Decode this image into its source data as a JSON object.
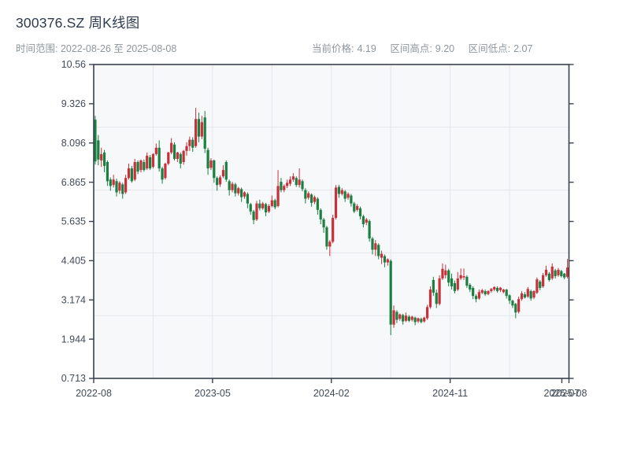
{
  "header": {
    "title": "300376.SZ 周K线图",
    "subtitle": "时间范围: 2022-08-26 至 2025-08-08",
    "stats": [
      {
        "label": "当前价格:",
        "value": "4.19"
      },
      {
        "label": "区间高点:",
        "value": "9.20"
      },
      {
        "label": "区间低点:",
        "value": "2.07"
      }
    ]
  },
  "chart_data": {
    "type": "candlestick",
    "title": "300376.SZ 周K线图",
    "period": "weekly",
    "date_start": "2022-08-26",
    "date_end": "2025-08-08",
    "current_price": 4.19,
    "range_high": 9.2,
    "range_low": 2.07,
    "y_axis": {
      "min": 0.713,
      "max": 10.56,
      "labels": [
        "10.56",
        "9.326",
        "8.096",
        "6.865",
        "5.635",
        "4.405",
        "3.174",
        "1.944",
        "0.713"
      ]
    },
    "x_axis": {
      "ticks": [
        {
          "label": "2022-08",
          "pos": 0
        },
        {
          "label": "2023-05",
          "pos": 0.25
        },
        {
          "label": "2024-02",
          "pos": 0.5
        },
        {
          "label": "2024-11",
          "pos": 0.75
        },
        {
          "label": "2025-07",
          "pos": 0.985
        },
        {
          "label": "2025-08",
          "pos": 1.0
        }
      ]
    },
    "grid": {
      "h_divisions": 5,
      "v_divisions": 8
    },
    "colors": {
      "up": "#c8313a",
      "down": "#1a7f41",
      "plot_bg": "#f7f8fa",
      "grid": "#e2e6eb",
      "axis": "#39424e",
      "label": "#414c59",
      "title": "#2e3b4e",
      "meta": "#8e979f"
    },
    "ohlc": [
      [
        8.83,
        8.95,
        7.42,
        7.52
      ],
      [
        8.18,
        8.35,
        7.4,
        7.58
      ],
      [
        7.55,
        7.95,
        7.35,
        7.75
      ],
      [
        7.8,
        7.88,
        7.18,
        7.38
      ],
      [
        7.5,
        7.55,
        6.75,
        6.9
      ],
      [
        6.95,
        7.02,
        6.6,
        6.75
      ],
      [
        6.78,
        7.1,
        6.7,
        6.95
      ],
      [
        6.9,
        6.98,
        6.42,
        6.55
      ],
      [
        6.6,
        6.9,
        6.5,
        6.85
      ],
      [
        6.8,
        6.85,
        6.35,
        6.5
      ],
      [
        6.55,
        7.1,
        6.5,
        7.0
      ],
      [
        7.0,
        7.45,
        6.95,
        7.3
      ],
      [
        7.3,
        7.38,
        6.85,
        6.9
      ],
      [
        6.95,
        7.6,
        6.9,
        7.5
      ],
      [
        7.5,
        7.55,
        7.12,
        7.2
      ],
      [
        7.25,
        7.58,
        7.18,
        7.55
      ],
      [
        7.5,
        7.58,
        7.2,
        7.25
      ],
      [
        7.3,
        7.8,
        7.25,
        7.7
      ],
      [
        7.65,
        7.72,
        7.25,
        7.3
      ],
      [
        7.35,
        7.78,
        7.3,
        7.75
      ],
      [
        7.75,
        8.08,
        7.7,
        7.95
      ],
      [
        7.95,
        8.18,
        7.2,
        7.3
      ],
      [
        7.3,
        7.35,
        6.82,
        6.95
      ],
      [
        7.0,
        7.48,
        6.95,
        7.45
      ],
      [
        7.45,
        7.82,
        7.4,
        7.8
      ],
      [
        7.8,
        8.25,
        7.75,
        8.1
      ],
      [
        8.05,
        8.12,
        7.55,
        7.6
      ],
      [
        7.6,
        7.82,
        7.5,
        7.8
      ],
      [
        7.75,
        7.8,
        7.3,
        7.45
      ],
      [
        7.5,
        7.88,
        7.42,
        7.85
      ],
      [
        7.85,
        8.12,
        7.7,
        8.0
      ],
      [
        8.0,
        8.3,
        7.85,
        8.2
      ],
      [
        8.2,
        8.28,
        7.82,
        7.95
      ],
      [
        8.0,
        9.2,
        7.95,
        8.85
      ],
      [
        8.85,
        9.05,
        8.12,
        8.3
      ],
      [
        8.3,
        8.95,
        8.22,
        8.75
      ],
      [
        8.9,
        9.1,
        7.78,
        7.92
      ],
      [
        7.88,
        7.95,
        7.1,
        7.3
      ],
      [
        7.32,
        7.62,
        7.25,
        7.55
      ],
      [
        7.55,
        7.58,
        6.85,
        7.0
      ],
      [
        7.0,
        7.05,
        6.6,
        6.78
      ],
      [
        6.8,
        7.08,
        6.72,
        7.02
      ],
      [
        7.05,
        7.4,
        7.0,
        7.25
      ],
      [
        7.5,
        7.55,
        6.88,
        6.95
      ],
      [
        6.9,
        6.95,
        6.45,
        6.62
      ],
      [
        6.62,
        6.88,
        6.55,
        6.82
      ],
      [
        6.8,
        6.85,
        6.42,
        6.52
      ],
      [
        6.52,
        6.72,
        6.45,
        6.68
      ],
      [
        6.65,
        6.7,
        6.25,
        6.4
      ],
      [
        6.42,
        6.58,
        6.35,
        6.55
      ],
      [
        6.5,
        6.55,
        6.05,
        6.2
      ],
      [
        6.18,
        6.22,
        5.85,
        5.95
      ],
      [
        5.95,
        6.0,
        5.55,
        5.68
      ],
      [
        5.7,
        6.28,
        5.65,
        6.2
      ],
      [
        6.2,
        6.32,
        5.98,
        6.05
      ],
      [
        6.05,
        6.25,
        6.0,
        6.2
      ],
      [
        6.18,
        6.22,
        5.8,
        5.92
      ],
      [
        5.95,
        6.18,
        5.9,
        6.12
      ],
      [
        6.12,
        6.45,
        6.08,
        6.3
      ],
      [
        6.3,
        6.35,
        6.02,
        6.08
      ],
      [
        6.12,
        7.25,
        6.08,
        6.75
      ],
      [
        6.88,
        7.0,
        6.55,
        6.62
      ],
      [
        6.62,
        6.8,
        6.55,
        6.75
      ],
      [
        6.75,
        6.95,
        6.68,
        6.85
      ],
      [
        6.82,
        7.05,
        6.75,
        6.95
      ],
      [
        6.95,
        7.15,
        6.88,
        7.05
      ],
      [
        7.0,
        7.05,
        6.72,
        6.78
      ],
      [
        6.78,
        7.3,
        6.7,
        6.95
      ],
      [
        6.9,
        6.95,
        6.58,
        6.65
      ],
      [
        6.62,
        6.68,
        6.2,
        6.35
      ],
      [
        6.38,
        6.58,
        6.32,
        6.52
      ],
      [
        6.48,
        6.52,
        6.1,
        6.22
      ],
      [
        6.25,
        6.45,
        6.18,
        6.4
      ],
      [
        6.35,
        6.4,
        5.85,
        6.0
      ],
      [
        6.0,
        6.05,
        5.55,
        5.7
      ],
      [
        5.7,
        5.75,
        5.28,
        5.45
      ],
      [
        5.45,
        5.5,
        4.75,
        4.85
      ],
      [
        4.85,
        5.05,
        4.55,
        5.0
      ],
      [
        5.0,
        5.85,
        4.95,
        5.75
      ],
      [
        5.75,
        6.78,
        5.7,
        6.7
      ],
      [
        6.72,
        6.78,
        6.38,
        6.5
      ],
      [
        6.5,
        6.68,
        6.45,
        6.62
      ],
      [
        6.58,
        6.62,
        6.25,
        6.35
      ],
      [
        6.38,
        6.55,
        6.32,
        6.5
      ],
      [
        6.45,
        6.5,
        6.1,
        6.2
      ],
      [
        6.2,
        6.25,
        5.9,
        5.95
      ],
      [
        6.0,
        6.18,
        5.95,
        6.12
      ],
      [
        6.05,
        6.1,
        5.7,
        5.8
      ],
      [
        5.8,
        5.85,
        5.45,
        5.55
      ],
      [
        5.6,
        5.75,
        5.52,
        5.7
      ],
      [
        5.65,
        5.7,
        5.0,
        5.1
      ],
      [
        5.1,
        5.15,
        4.6,
        4.75
      ],
      [
        4.75,
        5.05,
        4.55,
        4.95
      ],
      [
        4.9,
        4.95,
        4.45,
        4.55
      ],
      [
        4.5,
        4.72,
        4.3,
        4.62
      ],
      [
        4.55,
        4.6,
        4.2,
        4.35
      ],
      [
        4.35,
        4.48,
        4.25,
        4.45
      ],
      [
        4.4,
        4.45,
        2.07,
        2.4
      ],
      [
        2.4,
        3.0,
        2.3,
        2.85
      ],
      [
        2.8,
        2.85,
        2.45,
        2.55
      ],
      [
        2.58,
        2.75,
        2.52,
        2.72
      ],
      [
        2.7,
        2.74,
        2.4,
        2.5
      ],
      [
        2.52,
        2.78,
        2.48,
        2.68
      ],
      [
        2.65,
        2.7,
        2.48,
        2.52
      ],
      [
        2.55,
        2.68,
        2.5,
        2.65
      ],
      [
        2.62,
        2.65,
        2.38,
        2.48
      ],
      [
        2.5,
        2.62,
        2.45,
        2.6
      ],
      [
        2.58,
        2.62,
        2.44,
        2.48
      ],
      [
        2.5,
        2.65,
        2.46,
        2.62
      ],
      [
        2.6,
        3.02,
        2.55,
        2.95
      ],
      [
        2.95,
        3.6,
        2.9,
        3.5
      ],
      [
        3.8,
        3.9,
        3.3,
        3.4
      ],
      [
        3.4,
        3.5,
        2.92,
        3.05
      ],
      [
        3.05,
        3.95,
        3.0,
        3.85
      ],
      [
        3.85,
        4.32,
        3.8,
        4.15
      ],
      [
        3.95,
        4.28,
        3.85,
        4.1
      ],
      [
        4.1,
        4.15,
        3.6,
        3.72
      ],
      [
        3.85,
        4.0,
        3.5,
        3.6
      ],
      [
        3.7,
        3.78,
        3.38,
        3.45
      ],
      [
        3.5,
        4.05,
        3.45,
        3.85
      ],
      [
        3.85,
        4.16,
        3.8,
        3.95
      ],
      [
        3.88,
        4.16,
        3.8,
        3.92
      ],
      [
        3.9,
        3.95,
        3.55,
        3.62
      ],
      [
        3.65,
        3.7,
        3.42,
        3.5
      ],
      [
        3.55,
        3.6,
        3.2,
        3.3
      ],
      [
        3.3,
        3.35,
        3.1,
        3.2
      ],
      [
        3.22,
        3.5,
        3.18,
        3.42
      ],
      [
        3.4,
        3.52,
        3.35,
        3.48
      ],
      [
        3.45,
        3.5,
        3.3,
        3.35
      ],
      [
        3.36,
        3.48,
        3.32,
        3.45
      ],
      [
        3.45,
        3.55,
        3.4,
        3.52
      ],
      [
        3.5,
        3.6,
        3.45,
        3.58
      ],
      [
        3.55,
        3.6,
        3.4,
        3.45
      ],
      [
        3.48,
        3.58,
        3.42,
        3.56
      ],
      [
        3.42,
        3.52,
        3.38,
        3.5
      ],
      [
        3.5,
        3.52,
        3.22,
        3.3
      ],
      [
        3.32,
        3.35,
        3.05,
        3.15
      ],
      [
        3.15,
        3.18,
        2.92,
        3.0
      ],
      [
        3.05,
        3.08,
        2.6,
        2.78
      ],
      [
        2.8,
        3.28,
        2.75,
        3.2
      ],
      [
        3.2,
        3.45,
        3.15,
        3.38
      ],
      [
        3.35,
        3.42,
        3.22,
        3.25
      ],
      [
        3.28,
        3.58,
        3.24,
        3.52
      ],
      [
        3.45,
        3.5,
        3.15,
        3.22
      ],
      [
        3.25,
        3.48,
        3.2,
        3.45
      ],
      [
        3.4,
        3.88,
        3.36,
        3.82
      ],
      [
        3.75,
        3.8,
        3.48,
        3.55
      ],
      [
        3.6,
        4.02,
        3.55,
        3.95
      ],
      [
        3.95,
        4.25,
        3.9,
        4.12
      ],
      [
        4.0,
        4.05,
        3.75,
        3.8
      ],
      [
        3.85,
        4.32,
        3.8,
        4.22
      ],
      [
        4.1,
        4.15,
        3.85,
        3.92
      ],
      [
        3.95,
        4.18,
        3.9,
        4.12
      ],
      [
        4.08,
        4.12,
        3.88,
        3.92
      ],
      [
        4.0,
        4.02,
        3.82,
        3.88
      ],
      [
        3.9,
        4.46,
        3.85,
        4.19
      ]
    ]
  }
}
